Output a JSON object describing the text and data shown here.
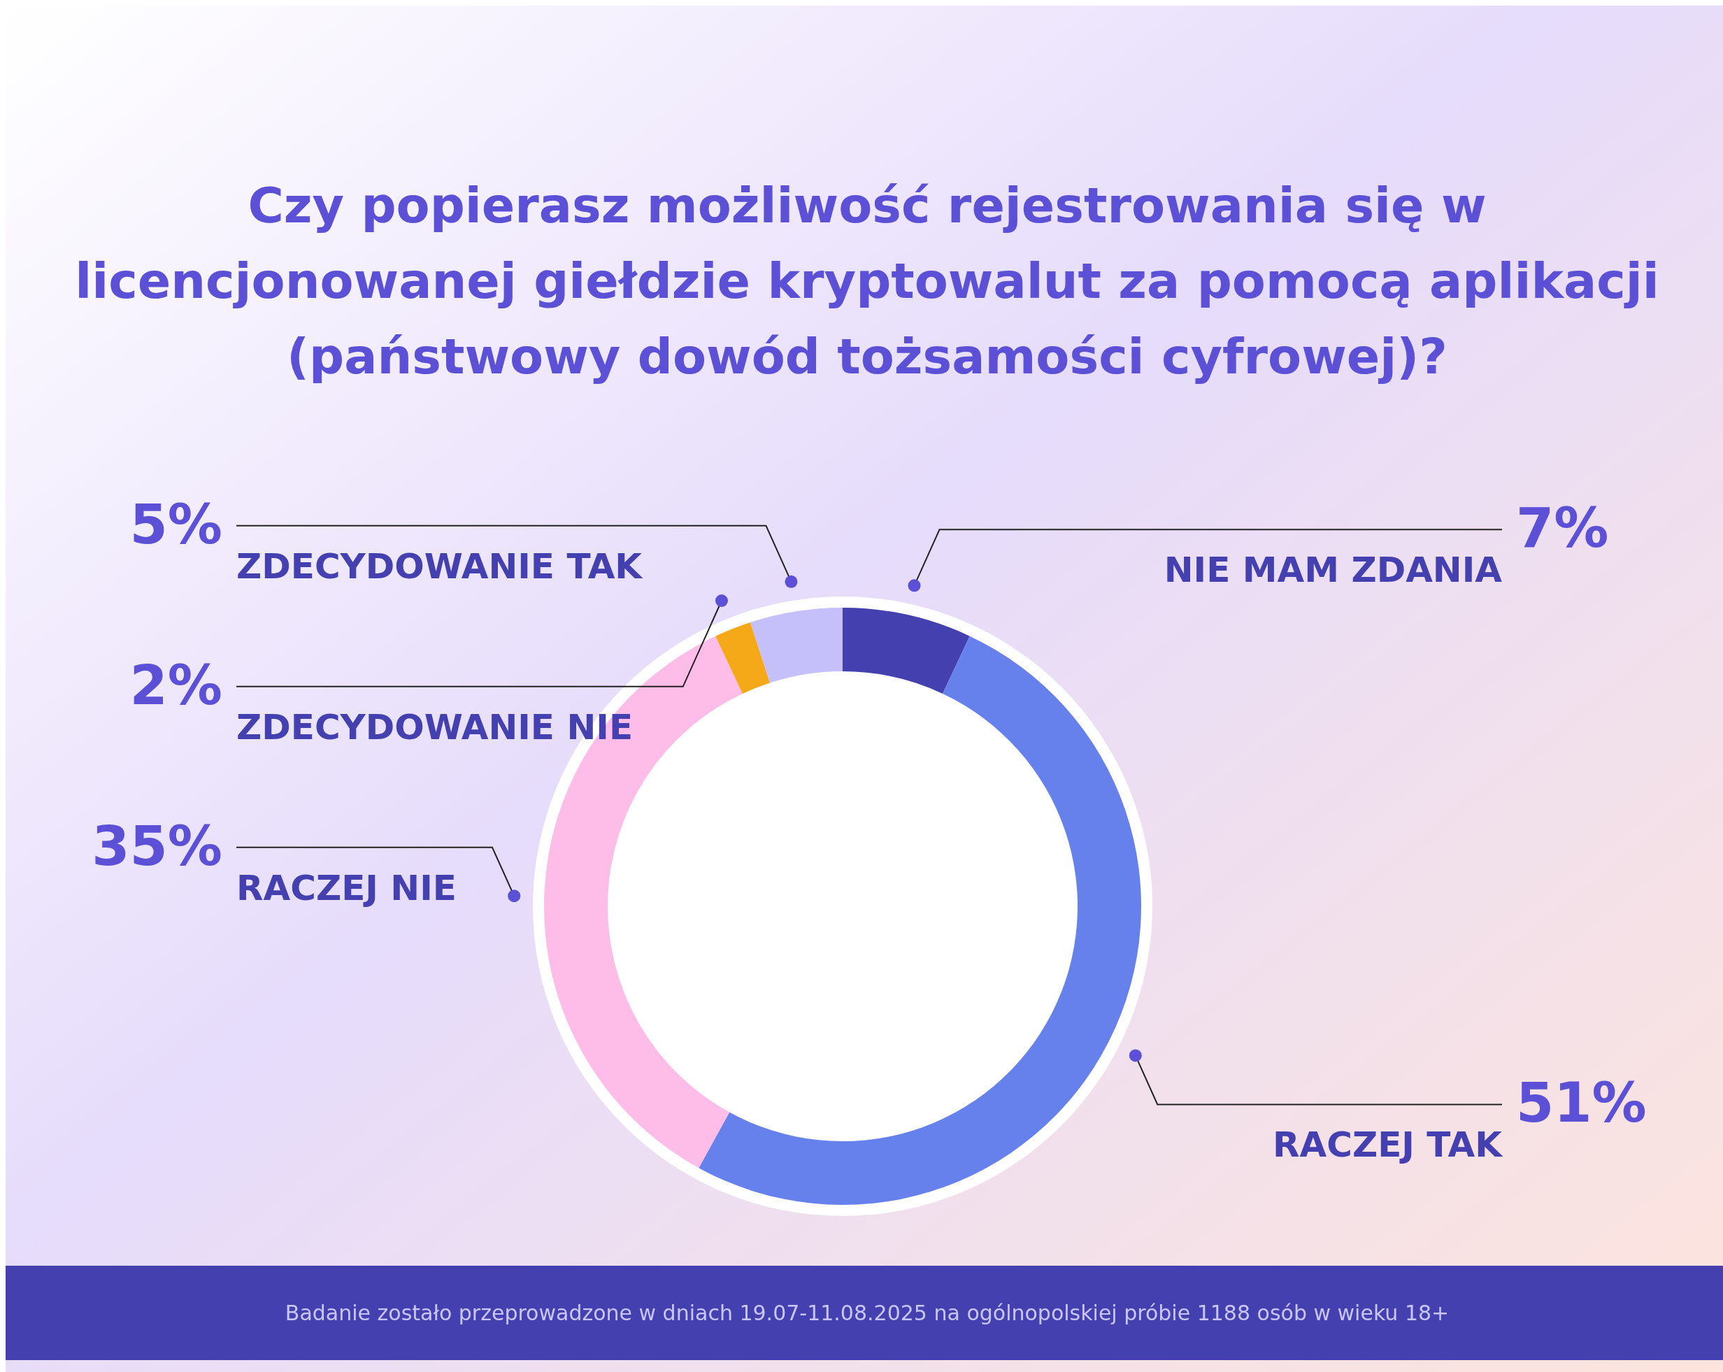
{
  "chart_data": {
    "type": "donut",
    "title": "Czy popierasz możliwość rejestrowania się w licencjonowanej giełdzie kryptowalut za pomocą aplikacji (państwowy dowód tożsamości cyfrowej)?",
    "categories": [
      "NIE MAM ZDANIA",
      "RACZEJ TAK",
      "RACZEJ NIE",
      "ZDECYDOWANIE NIE",
      "ZDECYDOWANIE TAK"
    ],
    "values": [
      7,
      51,
      35,
      2,
      5
    ],
    "colors": [
      "#4540b0",
      "#6681ec",
      "#fdbde8",
      "#f5a818",
      "#c5c0fa"
    ],
    "value_labels": [
      "7%",
      "51%",
      "35%",
      "2%",
      "5%"
    ],
    "annotations": [
      "Badanie zostało przeprowadzone w dniach 19.07-11.08.2025 na ogólnopolskiej próbie 1188 osób w wieku 18+"
    ]
  }
}
